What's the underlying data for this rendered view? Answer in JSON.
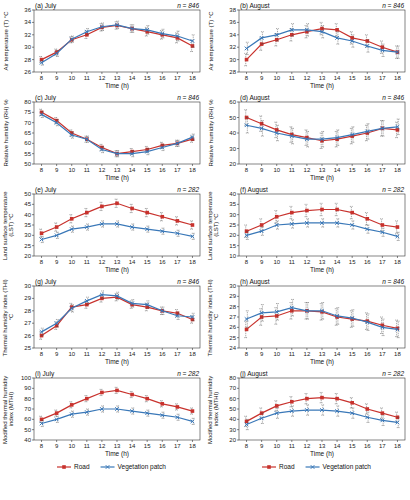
{
  "chart_data": [
    {
      "type": "line",
      "title": "(a) July",
      "annotation": "n = 846",
      "y_label": "Air temperature (T) °C",
      "x_label": "Time (h)",
      "x": [
        8,
        9,
        10,
        11,
        12,
        13,
        14,
        15,
        16,
        17,
        18
      ],
      "xlim": [
        7.5,
        18.5
      ],
      "xticks": [
        8,
        9,
        10,
        11,
        12,
        13,
        14,
        15,
        16,
        17,
        18
      ],
      "ylim": [
        26,
        36
      ],
      "yticks": [
        26,
        28,
        30,
        32,
        34,
        36
      ],
      "grid": false,
      "series": [
        {
          "color": "#c8322d",
          "marker": "square",
          "values": [
            28.0,
            29.2,
            31.2,
            32.0,
            33.2,
            33.5,
            33.0,
            32.5,
            32.0,
            31.5,
            30.2
          ],
          "errors": [
            0.5,
            0.5,
            0.5,
            0.6,
            0.6,
            0.6,
            0.6,
            0.7,
            0.7,
            0.8,
            0.9
          ]
        },
        {
          "color": "#3a78b8",
          "marker": "cross",
          "values": [
            27.5,
            29.0,
            31.3,
            32.5,
            33.3,
            33.6,
            33.0,
            32.8,
            32.2,
            31.8,
            31.0
          ],
          "errors": [
            0.4,
            0.5,
            0.5,
            0.5,
            0.6,
            0.6,
            0.6,
            0.7,
            0.7,
            0.8,
            1.0
          ]
        }
      ]
    },
    {
      "type": "line",
      "title": "(b) August",
      "annotation": "n = 846",
      "y_label": "Air temperature (T) °C",
      "x_label": "Time (h)",
      "x": [
        8,
        9,
        10,
        11,
        12,
        13,
        14,
        15,
        16,
        17,
        18
      ],
      "xlim": [
        7.5,
        18.5
      ],
      "xticks": [
        8,
        9,
        10,
        11,
        12,
        13,
        14,
        15,
        16,
        17,
        18
      ],
      "ylim": [
        28,
        38
      ],
      "yticks": [
        28,
        30,
        32,
        34,
        36,
        38
      ],
      "grid": false,
      "series": [
        {
          "color": "#c8322d",
          "marker": "square",
          "values": [
            30.0,
            32.5,
            33.2,
            34.0,
            34.5,
            35.0,
            34.8,
            33.5,
            33.0,
            32.0,
            31.2
          ],
          "errors": [
            1.0,
            1.0,
            1.0,
            1.0,
            1.0,
            1.0,
            1.0,
            1.0,
            1.0,
            1.0,
            1.0
          ]
        },
        {
          "color": "#3a78b8",
          "marker": "cross",
          "values": [
            31.8,
            33.5,
            34.0,
            34.8,
            34.8,
            34.5,
            33.5,
            33.0,
            32.2,
            31.5,
            31.2
          ],
          "errors": [
            1.0,
            1.0,
            1.0,
            1.0,
            1.0,
            1.0,
            1.0,
            1.0,
            1.0,
            1.0,
            1.0
          ]
        }
      ]
    },
    {
      "type": "line",
      "title": "(c) July",
      "annotation": "n = 846",
      "y_label": "Relative humidity (RH) %",
      "x_label": "Time (h)",
      "x": [
        8,
        9,
        10,
        11,
        12,
        13,
        14,
        15,
        16,
        17,
        18
      ],
      "xlim": [
        7.5,
        18.5
      ],
      "xticks": [
        8,
        9,
        10,
        11,
        12,
        13,
        14,
        15,
        16,
        17,
        18
      ],
      "ylim": [
        50,
        80
      ],
      "yticks": [
        50,
        55,
        60,
        65,
        70,
        75,
        80
      ],
      "grid": false,
      "series": [
        {
          "color": "#c8322d",
          "marker": "square",
          "values": [
            75,
            71,
            65,
            62,
            58,
            55,
            56,
            57,
            59,
            60,
            62
          ],
          "errors": [
            1.5,
            1.5,
            1.5,
            1.5,
            1.5,
            1.5,
            1.5,
            1.5,
            1.5,
            1.5,
            1.5
          ]
        },
        {
          "color": "#3a78b8",
          "marker": "cross",
          "values": [
            74,
            70,
            64,
            62,
            57,
            55,
            55,
            56,
            58,
            60,
            63
          ],
          "errors": [
            1.5,
            1.5,
            1.5,
            1.5,
            1.5,
            1.5,
            1.5,
            1.5,
            1.5,
            1.5,
            1.5
          ]
        }
      ]
    },
    {
      "type": "line",
      "title": "(d) August",
      "annotation": "n = 846",
      "y_label": "Relative humidity (RH) %",
      "x_label": "Time (h)",
      "x": [
        8,
        9,
        10,
        11,
        12,
        13,
        14,
        15,
        16,
        17,
        18
      ],
      "xlim": [
        7.5,
        18.5
      ],
      "xticks": [
        8,
        9,
        10,
        11,
        12,
        13,
        14,
        15,
        16,
        17,
        18
      ],
      "ylim": [
        20,
        60
      ],
      "yticks": [
        20,
        30,
        40,
        50,
        60
      ],
      "grid": false,
      "series": [
        {
          "color": "#c8322d",
          "marker": "square",
          "values": [
            50,
            46,
            42,
            39,
            37,
            35,
            36,
            38,
            40,
            43,
            42
          ],
          "errors": [
            5,
            5,
            5,
            5,
            5,
            5,
            5,
            5,
            5,
            5,
            5
          ]
        },
        {
          "color": "#3a78b8",
          "marker": "cross",
          "values": [
            45,
            43,
            40,
            38,
            36,
            36,
            37,
            39,
            41,
            43,
            44
          ],
          "errors": [
            5,
            5,
            5,
            5,
            5,
            5,
            5,
            5,
            5,
            5,
            5
          ]
        }
      ]
    },
    {
      "type": "line",
      "title": "(e) July",
      "annotation": "n = 282",
      "y_label": "Land surface temperature (LST) °C",
      "x_label": "Time (h)",
      "x": [
        8,
        9,
        10,
        11,
        12,
        13,
        14,
        15,
        16,
        17,
        18
      ],
      "xlim": [
        7.5,
        18.5
      ],
      "xticks": [
        8,
        9,
        10,
        11,
        12,
        13,
        14,
        15,
        16,
        17,
        18
      ],
      "ylim": [
        20,
        50
      ],
      "yticks": [
        20,
        25,
        30,
        35,
        40,
        45,
        50
      ],
      "grid": false,
      "series": [
        {
          "color": "#c8322d",
          "marker": "square",
          "values": [
            31,
            34,
            38,
            41,
            44,
            45.5,
            43,
            41,
            39,
            37,
            35
          ],
          "errors": [
            2,
            2,
            2,
            2,
            2,
            2,
            2,
            2,
            2,
            2,
            2
          ]
        },
        {
          "color": "#3a78b8",
          "marker": "cross",
          "values": [
            28,
            30,
            33,
            34,
            35.5,
            35.5,
            34,
            33,
            32,
            31,
            29.5
          ],
          "errors": [
            1.5,
            1.5,
            1.5,
            1.5,
            1.5,
            1.5,
            1.5,
            1.5,
            1.5,
            1.5,
            1.5
          ]
        }
      ]
    },
    {
      "type": "line",
      "title": "(f) August",
      "annotation": "n = 282",
      "y_label": "Land surface temperature (LST) °C",
      "x_label": "Time (h)",
      "x": [
        8,
        9,
        10,
        11,
        12,
        13,
        14,
        15,
        16,
        17,
        18
      ],
      "xlim": [
        7.5,
        18.5
      ],
      "xticks": [
        8,
        9,
        10,
        11,
        12,
        13,
        14,
        15,
        16,
        17,
        18
      ],
      "ylim": [
        10,
        40
      ],
      "yticks": [
        10,
        15,
        20,
        25,
        30,
        35,
        40
      ],
      "grid": false,
      "series": [
        {
          "color": "#c8322d",
          "marker": "square",
          "values": [
            22,
            25,
            29,
            31,
            32,
            32.5,
            32.5,
            31,
            28,
            25,
            24
          ],
          "errors": [
            3,
            3,
            3,
            3,
            3,
            3,
            3,
            3,
            3,
            3,
            3
          ]
        },
        {
          "color": "#3a78b8",
          "marker": "cross",
          "values": [
            20,
            22,
            25,
            25.5,
            26,
            26,
            26,
            25,
            23,
            21.5,
            19.5
          ],
          "errors": [
            2,
            2,
            2,
            2,
            2,
            2,
            2,
            2,
            2,
            2,
            2
          ]
        }
      ]
    },
    {
      "type": "line",
      "title": "(g) July",
      "annotation": "n = 846",
      "y_label": "Thermal humidity index (THI) °C",
      "x_label": "Time (h)",
      "x": [
        8,
        9,
        10,
        11,
        12,
        13,
        14,
        15,
        16,
        17,
        18
      ],
      "xlim": [
        7.5,
        18.5
      ],
      "xticks": [
        8,
        9,
        10,
        11,
        12,
        13,
        14,
        15,
        16,
        17,
        18
      ],
      "ylim": [
        25,
        30
      ],
      "yticks": [
        25,
        26,
        27,
        28,
        29,
        30
      ],
      "grid": false,
      "series": [
        {
          "color": "#c8322d",
          "marker": "square",
          "values": [
            26.0,
            26.8,
            28.3,
            28.5,
            29.0,
            29.1,
            28.5,
            28.3,
            28.0,
            27.8,
            27.3
          ],
          "errors": [
            0.3,
            0.3,
            0.3,
            0.3,
            0.3,
            0.3,
            0.3,
            0.3,
            0.3,
            0.3,
            0.3
          ]
        },
        {
          "color": "#3a78b8",
          "marker": "cross",
          "values": [
            26.3,
            27.0,
            28.2,
            28.8,
            29.3,
            29.2,
            28.6,
            28.5,
            28.0,
            27.6,
            27.5
          ],
          "errors": [
            0.3,
            0.3,
            0.3,
            0.3,
            0.3,
            0.3,
            0.3,
            0.3,
            0.3,
            0.3,
            0.3
          ]
        }
      ]
    },
    {
      "type": "line",
      "title": "(h) August",
      "annotation": "n = 846",
      "y_label": "Thermal humidity index (THI) °C",
      "x_label": "Time (h)",
      "x": [
        8,
        9,
        10,
        11,
        12,
        13,
        14,
        15,
        16,
        17,
        18
      ],
      "xlim": [
        7.5,
        18.5
      ],
      "xticks": [
        8,
        9,
        10,
        11,
        12,
        13,
        14,
        15,
        16,
        17,
        18
      ],
      "ylim": [
        24,
        30
      ],
      "yticks": [
        24,
        25,
        26,
        27,
        28,
        29,
        30
      ],
      "grid": false,
      "series": [
        {
          "color": "#c8322d",
          "marker": "square",
          "values": [
            25.8,
            27.0,
            27.1,
            27.6,
            27.6,
            27.5,
            27.0,
            26.8,
            26.6,
            26.2,
            25.9
          ],
          "errors": [
            0.8,
            0.8,
            0.8,
            0.8,
            0.8,
            0.8,
            0.8,
            0.8,
            0.8,
            0.8,
            0.8
          ]
        },
        {
          "color": "#3a78b8",
          "marker": "cross",
          "values": [
            26.8,
            27.4,
            27.5,
            27.9,
            27.6,
            27.6,
            27.1,
            26.9,
            26.5,
            26.0,
            25.8
          ],
          "errors": [
            0.8,
            0.8,
            0.8,
            0.8,
            0.8,
            0.8,
            0.8,
            0.8,
            0.8,
            0.8,
            0.8
          ]
        }
      ]
    },
    {
      "type": "line",
      "title": "(i) July",
      "annotation": "n = 282",
      "y_label": "Modified thermal humidity index (MTHI)",
      "x_label": "Time (h)",
      "x": [
        8,
        9,
        10,
        11,
        12,
        13,
        14,
        15,
        16,
        17,
        18
      ],
      "xlim": [
        7.5,
        18.5
      ],
      "xticks": [
        8,
        9,
        10,
        11,
        12,
        13,
        14,
        15,
        16,
        17,
        18
      ],
      "ylim": [
        40,
        100
      ],
      "yticks": [
        40,
        50,
        60,
        70,
        80,
        90,
        100
      ],
      "grid": false,
      "legend": "bottom",
      "series": [
        {
          "name": "Road",
          "color": "#c8322d",
          "marker": "square",
          "values": [
            60,
            66,
            74,
            80,
            86,
            88,
            84,
            80,
            75,
            72,
            68
          ],
          "errors": [
            3,
            3,
            3,
            3,
            3,
            3,
            3,
            3,
            3,
            3,
            3
          ]
        },
        {
          "name": "Vegetation patch",
          "color": "#3a78b8",
          "marker": "cross",
          "values": [
            56,
            60,
            65,
            67,
            70,
            70,
            68,
            66,
            64,
            62,
            58
          ],
          "errors": [
            3,
            3,
            3,
            3,
            3,
            3,
            3,
            3,
            3,
            3,
            3
          ]
        }
      ]
    },
    {
      "type": "line",
      "title": "(j) August",
      "annotation": "n = 282",
      "y_label": "Modified thermal humidity index (MTHI)",
      "x_label": "Time (h)",
      "x": [
        8,
        9,
        10,
        11,
        12,
        13,
        14,
        15,
        16,
        17,
        18
      ],
      "xlim": [
        7.5,
        18.5
      ],
      "xticks": [
        8,
        9,
        10,
        11,
        12,
        13,
        14,
        15,
        16,
        17,
        18
      ],
      "ylim": [
        20,
        80
      ],
      "yticks": [
        20,
        30,
        40,
        50,
        60,
        70,
        80
      ],
      "grid": false,
      "legend": "bottom",
      "series": [
        {
          "name": "Road",
          "color": "#c8322d",
          "marker": "square",
          "values": [
            38,
            46,
            53,
            57,
            60,
            61,
            60,
            56,
            50,
            46,
            42
          ],
          "errors": [
            5,
            5,
            5,
            5,
            5,
            5,
            5,
            5,
            5,
            5,
            5
          ]
        },
        {
          "name": "Vegetation patch",
          "color": "#3a78b8",
          "marker": "cross",
          "values": [
            35,
            41,
            46,
            48,
            49,
            49,
            48,
            46,
            42,
            39,
            37
          ],
          "errors": [
            5,
            5,
            5,
            5,
            5,
            5,
            5,
            5,
            5,
            5,
            5
          ]
        }
      ]
    }
  ]
}
